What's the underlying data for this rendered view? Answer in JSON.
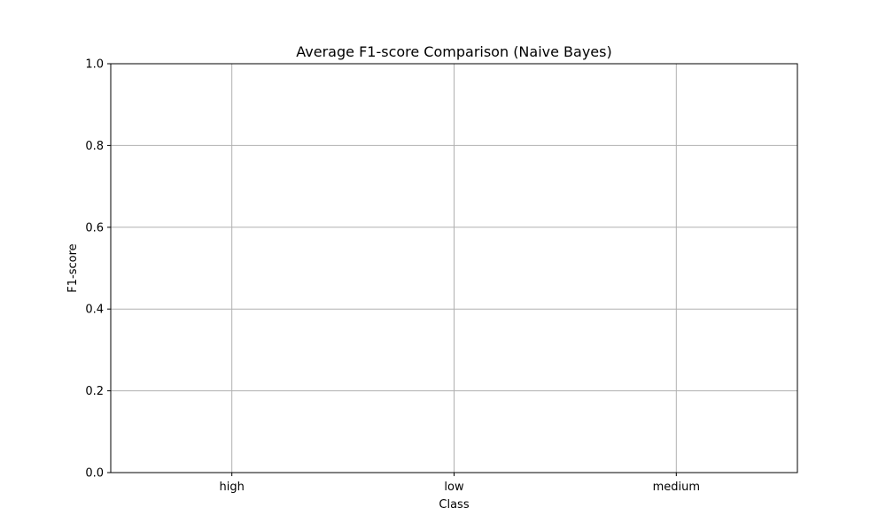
{
  "chart_data": {
    "type": "bar",
    "title": "Average F1-score Comparison (Naive Bayes)",
    "xlabel": "Class",
    "ylabel": "F1-score",
    "categories": [
      "high",
      "low",
      "medium"
    ],
    "series": [
      {
        "values": [
          null,
          null,
          null
        ]
      }
    ],
    "ylim": [
      0.0,
      1.0
    ],
    "yticks": [
      "0.0",
      "0.2",
      "0.4",
      "0.6",
      "0.8",
      "1.0"
    ],
    "yticks_values": [
      0.0,
      0.2,
      0.4,
      0.6,
      0.8,
      1.0
    ],
    "grid": true,
    "colors": {
      "grid": "#b0b0b0",
      "axis": "#000000",
      "background": "#ffffff"
    }
  }
}
